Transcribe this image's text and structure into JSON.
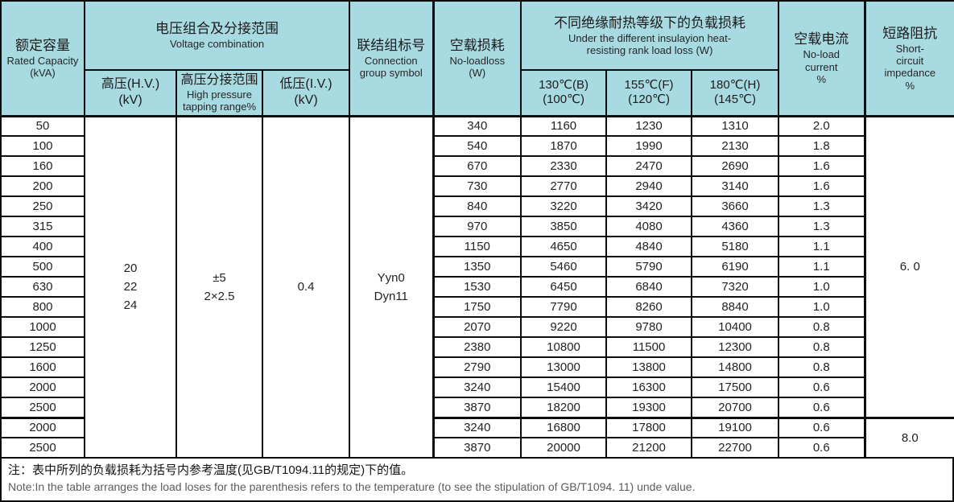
{
  "table": {
    "headers": {
      "capacity": [
        "额定容量",
        "Rated Capacity",
        "(kVA)"
      ],
      "voltage_group": [
        "电压组合及分接范围",
        "Voltage combination"
      ],
      "hv": [
        "高压(H.V.)",
        "(kV)"
      ],
      "tapping": [
        "高压分接范围",
        "High pressure",
        "tapping range%"
      ],
      "lv": [
        "低压(I.V.)",
        "(kV)"
      ],
      "connection": [
        "联结组标号",
        "Connection",
        "group symbol"
      ],
      "no_load_loss": [
        "空载损耗",
        "No-loadloss",
        "(W)"
      ],
      "load_loss_group": [
        "不同绝缘耐热等级下的负载损耗",
        "Under the different insulayion heat-",
        "resisting rank load loss (W)"
      ],
      "t130": [
        "130℃(B)",
        "(100℃)"
      ],
      "t155": [
        "155℃(F)",
        "(120℃)"
      ],
      "t180": [
        "180℃(H)",
        "(145℃)"
      ],
      "no_load_current": [
        "空载电流",
        "No-load",
        "current",
        "%"
      ],
      "impedance": [
        "短路阻抗",
        "Short-",
        "circuit",
        "impedance",
        "%"
      ]
    },
    "merged": {
      "hv_kv": [
        "20",
        "22",
        "24"
      ],
      "tapping_range": [
        "±5",
        "2×2.5"
      ],
      "lv_kv": "0.4",
      "connection": [
        "Yyn0",
        "Dyn11"
      ]
    },
    "impedance_groups": [
      {
        "value": "6. 0",
        "rows": 15
      },
      {
        "value": "8.0",
        "rows": 2
      }
    ],
    "rows": [
      {
        "capacity": "50",
        "no_load_loss": "340",
        "loss_130": "1160",
        "loss_155": "1230",
        "loss_180": "1310",
        "no_load_current": "2.0"
      },
      {
        "capacity": "100",
        "no_load_loss": "540",
        "loss_130": "1870",
        "loss_155": "1990",
        "loss_180": "2130",
        "no_load_current": "1.8"
      },
      {
        "capacity": "160",
        "no_load_loss": "670",
        "loss_130": "2330",
        "loss_155": "2470",
        "loss_180": "2690",
        "no_load_current": "1.6"
      },
      {
        "capacity": "200",
        "no_load_loss": "730",
        "loss_130": "2770",
        "loss_155": "2940",
        "loss_180": "3140",
        "no_load_current": "1.6"
      },
      {
        "capacity": "250",
        "no_load_loss": "840",
        "loss_130": "3220",
        "loss_155": "3420",
        "loss_180": "3660",
        "no_load_current": "1.3"
      },
      {
        "capacity": "315",
        "no_load_loss": "970",
        "loss_130": "3850",
        "loss_155": "4080",
        "loss_180": "4360",
        "no_load_current": "1.3"
      },
      {
        "capacity": "400",
        "no_load_loss": "1150",
        "loss_130": "4650",
        "loss_155": "4840",
        "loss_180": "5180",
        "no_load_current": "1.1"
      },
      {
        "capacity": "500",
        "no_load_loss": "1350",
        "loss_130": "5460",
        "loss_155": "5790",
        "loss_180": "6190",
        "no_load_current": "1.1"
      },
      {
        "capacity": "630",
        "no_load_loss": "1530",
        "loss_130": "6450",
        "loss_155": "6840",
        "loss_180": "7320",
        "no_load_current": "1.0"
      },
      {
        "capacity": "800",
        "no_load_loss": "1750",
        "loss_130": "7790",
        "loss_155": "8260",
        "loss_180": "8840",
        "no_load_current": "1.0"
      },
      {
        "capacity": "1000",
        "no_load_loss": "2070",
        "loss_130": "9220",
        "loss_155": "9780",
        "loss_180": "10400",
        "no_load_current": "0.8"
      },
      {
        "capacity": "1250",
        "no_load_loss": "2380",
        "loss_130": "10800",
        "loss_155": "11500",
        "loss_180": "12300",
        "no_load_current": "0.8"
      },
      {
        "capacity": "1600",
        "no_load_loss": "2790",
        "loss_130": "13000",
        "loss_155": "13800",
        "loss_180": "14800",
        "no_load_current": "0.8"
      },
      {
        "capacity": "2000",
        "no_load_loss": "3240",
        "loss_130": "15400",
        "loss_155": "16300",
        "loss_180": "17500",
        "no_load_current": "0.6"
      },
      {
        "capacity": "2500",
        "no_load_loss": "3870",
        "loss_130": "18200",
        "loss_155": "19300",
        "loss_180": "20700",
        "no_load_current": "0.6"
      },
      {
        "capacity": "2000",
        "no_load_loss": "3240",
        "loss_130": "16800",
        "loss_155": "17800",
        "loss_180": "19100",
        "no_load_current": "0.6"
      },
      {
        "capacity": "2500",
        "no_load_loss": "3870",
        "loss_130": "20000",
        "loss_155": "21200",
        "loss_180": "22700",
        "no_load_current": "0.6"
      }
    ]
  },
  "notes": {
    "cn": "注：表中所列的负载损耗为括号内参考温度(见GB/T1094.11的规定)下的值。",
    "en": "Note:In the table arranges the load loses for the parenthesis refers to the temperature (to see the stipulation of GB/T1094. 11) unde value."
  },
  "colors": {
    "header_bg": "#a8dae2",
    "border": "#0c0c0c",
    "note_en_text": "#5a5c5e"
  }
}
